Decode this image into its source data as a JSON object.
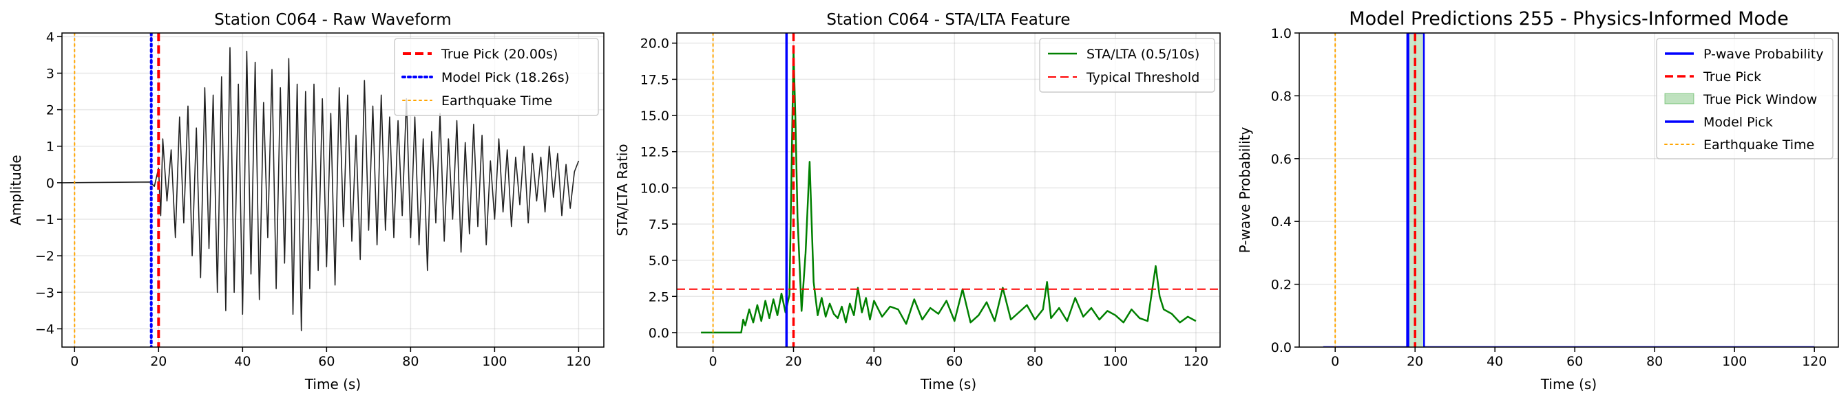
{
  "chart_data": [
    {
      "type": "line",
      "title": "Station C064 - Raw Waveform",
      "xlabel": "Time (s)",
      "ylabel": "Amplitude",
      "xlim": [
        -3,
        126
      ],
      "ylim": [
        -4.5,
        4.1
      ],
      "xticks": [
        0,
        20,
        40,
        60,
        80,
        100,
        120
      ],
      "xtick_labels": [
        "0",
        "20",
        "40",
        "60",
        "80",
        "100",
        "120"
      ],
      "yticks": [
        -4,
        -3,
        -2,
        -1,
        0,
        1,
        2,
        3,
        4
      ],
      "ytick_labels": [
        "−4",
        "−3",
        "−2",
        "−1",
        "0",
        "1",
        "2",
        "3",
        "4"
      ],
      "grid": true,
      "legend_position": "top-right",
      "series": [
        {
          "name": "",
          "color": "#222222",
          "x": [
            -3,
            18,
            19,
            20,
            20.5,
            21,
            22,
            23,
            24,
            25,
            26,
            27,
            28,
            29,
            30,
            31,
            32,
            33,
            34,
            35,
            36,
            37,
            38,
            39,
            40,
            41,
            42,
            43,
            44,
            45,
            46,
            47,
            48,
            49,
            50,
            51,
            52,
            53,
            54,
            55,
            56,
            57,
            58,
            59,
            60,
            61,
            62,
            63,
            64,
            65,
            66,
            67,
            68,
            69,
            70,
            71,
            72,
            73,
            74,
            75,
            76,
            77,
            78,
            79,
            80,
            81,
            82,
            83,
            84,
            85,
            86,
            87,
            88,
            89,
            90,
            91,
            92,
            93,
            94,
            95,
            96,
            97,
            98,
            99,
            100,
            101,
            102,
            103,
            104,
            105,
            106,
            107,
            108,
            109,
            110,
            111,
            112,
            113,
            114,
            115,
            116,
            117,
            118,
            119,
            120
          ],
          "y": [
            0.0,
            0.02,
            -0.1,
            0.4,
            -0.9,
            1.2,
            -0.5,
            0.9,
            -1.5,
            1.8,
            -1.1,
            2.1,
            -2.0,
            1.5,
            -2.6,
            2.6,
            -1.8,
            2.4,
            -3.0,
            2.9,
            -3.5,
            3.7,
            -3.0,
            2.7,
            -3.6,
            3.6,
            -2.5,
            3.3,
            -3.2,
            2.2,
            -1.5,
            3.1,
            -2.9,
            2.6,
            -2.2,
            3.4,
            -3.6,
            2.7,
            -4.05,
            2.5,
            -2.9,
            2.7,
            -2.4,
            2.3,
            -2.3,
            1.9,
            -2.8,
            2.6,
            -1.2,
            2.4,
            -1.6,
            1.3,
            -2.1,
            2.8,
            -1.3,
            2.1,
            -1.7,
            2.4,
            -1.3,
            1.8,
            -1.5,
            1.7,
            -0.9,
            2.3,
            -1.5,
            1.8,
            -1.7,
            1.2,
            -2.4,
            1.4,
            -1.1,
            1.9,
            -1.6,
            1.2,
            -1.0,
            1.7,
            -1.9,
            1.1,
            -1.4,
            1.6,
            -1.2,
            1.3,
            -1.7,
            0.6,
            -1.0,
            1.2,
            -0.8,
            0.9,
            -1.2,
            0.7,
            -0.6,
            1.0,
            -1.1,
            0.8,
            -0.5,
            0.7,
            -0.8,
            1.0,
            -0.4,
            0.8,
            -0.9,
            0.5,
            -0.7,
            0.3,
            0.6
          ]
        }
      ],
      "vlines": [
        {
          "name": "True Pick (20.00s)",
          "x": 20.0,
          "color": "#ff0000",
          "style": "dashed",
          "width": 4
        },
        {
          "name": "Model Pick (18.26s)",
          "x": 18.26,
          "color": "#0000ff",
          "style": "dotted",
          "width": 4
        },
        {
          "name": "Earthquake Time",
          "x": 0,
          "color": "#ffa500",
          "style": "dotted",
          "width": 2
        }
      ]
    },
    {
      "type": "line",
      "title": "Station C064 - STA/LTA Feature",
      "xlabel": "Time (s)",
      "ylabel": "STA/LTA Ratio",
      "xlim": [
        -9,
        126
      ],
      "ylim": [
        -1.0,
        20.7
      ],
      "xticks": [
        0,
        20,
        40,
        60,
        80,
        100,
        120
      ],
      "xtick_labels": [
        "0",
        "20",
        "40",
        "60",
        "80",
        "100",
        "120"
      ],
      "yticks": [
        0,
        2.5,
        5,
        7.5,
        10,
        12.5,
        15,
        17.5,
        20
      ],
      "ytick_labels": [
        "0.0",
        "2.5",
        "5.0",
        "7.5",
        "10.0",
        "12.5",
        "15.0",
        "17.5",
        "20.0"
      ],
      "grid": true,
      "legend_position": "top-right",
      "series": [
        {
          "name": "STA/LTA (0.5/10s)",
          "color": "#008000",
          "x": [
            -3,
            7,
            7.5,
            8,
            9,
            10,
            11,
            12,
            13,
            14,
            15,
            16,
            17,
            18,
            19,
            20,
            20.5,
            21,
            22,
            23,
            24,
            25,
            26,
            27,
            28,
            29,
            30,
            31,
            32,
            33,
            34,
            35,
            36,
            37,
            38,
            39,
            40,
            42,
            44,
            46,
            48,
            50,
            52,
            54,
            56,
            58,
            60,
            62,
            64,
            66,
            68,
            70,
            72,
            74,
            76,
            78,
            80,
            82,
            83,
            84,
            86,
            88,
            90,
            92,
            94,
            96,
            98,
            100,
            102,
            104,
            106,
            108,
            110,
            111,
            112,
            114,
            116,
            118,
            120
          ],
          "y": [
            0.0,
            0.0,
            0.9,
            0.5,
            1.6,
            0.7,
            1.9,
            0.8,
            2.2,
            1.0,
            2.3,
            1.2,
            2.7,
            1.4,
            2.6,
            19.5,
            14.5,
            8.0,
            1.5,
            5.5,
            11.8,
            3.5,
            1.2,
            2.4,
            1.1,
            2.0,
            1.3,
            1.0,
            1.8,
            0.7,
            2.0,
            1.2,
            3.1,
            1.4,
            2.4,
            0.9,
            2.2,
            1.1,
            1.8,
            1.6,
            0.6,
            2.3,
            0.9,
            1.7,
            1.3,
            2.2,
            0.8,
            3.0,
            0.7,
            1.2,
            2.1,
            0.8,
            3.1,
            0.9,
            1.4,
            1.9,
            0.9,
            1.6,
            3.5,
            1.0,
            1.7,
            0.8,
            2.4,
            1.1,
            1.7,
            0.9,
            1.5,
            1.2,
            0.7,
            1.6,
            1.0,
            0.8,
            4.6,
            2.5,
            1.6,
            1.3,
            0.7,
            1.1,
            0.8
          ]
        }
      ],
      "hlines": [
        {
          "name": "Typical Threshold",
          "y": 3.0,
          "color": "#ff0000",
          "style": "dashed",
          "width": 2
        }
      ],
      "vlines": [
        {
          "name": "",
          "x": 18.26,
          "color": "#0000ff",
          "style": "solid",
          "width": 3.5
        },
        {
          "name": "",
          "x": 20.0,
          "color": "#ff0000",
          "style": "dashed",
          "width": 3.5
        },
        {
          "name": "",
          "x": 0,
          "color": "#ffa500",
          "style": "dotted",
          "width": 2
        }
      ]
    },
    {
      "type": "line",
      "title": "Model Predictions 255 - Physics-Informed Mode",
      "xlabel": "Time (s)",
      "ylabel": "P-wave Probability",
      "xlim": [
        -9,
        126
      ],
      "ylim": [
        0,
        1.0
      ],
      "xticks": [
        0,
        20,
        40,
        60,
        80,
        100,
        120
      ],
      "xtick_labels": [
        "0",
        "20",
        "40",
        "60",
        "80",
        "100",
        "120"
      ],
      "yticks": [
        0,
        0.2,
        0.4,
        0.6,
        0.8,
        1.0
      ],
      "ytick_labels": [
        "0.0",
        "0.2",
        "0.4",
        "0.6",
        "0.8",
        "1.0"
      ],
      "grid": true,
      "legend_position": "top-right",
      "series": [
        {
          "name": "P-wave Probability",
          "color": "#0000ff",
          "x": [
            -3,
            18,
            18.05,
            22.2,
            22.25,
            120
          ],
          "y": [
            0.0,
            0.0,
            1.0,
            1.0,
            0.0,
            0.0
          ]
        }
      ],
      "spans": [
        {
          "name": "True Pick Window",
          "x0": 18.0,
          "x1": 22.0,
          "color": "#2ca02c",
          "opacity": 0.25
        }
      ],
      "vlines": [
        {
          "name": "True Pick",
          "x": 20.0,
          "color": "#ff0000",
          "style": "dashed",
          "width": 3.5
        },
        {
          "name": "Model Pick",
          "x": 18.26,
          "color": "#0000ff",
          "style": "solid",
          "width": 3.5
        },
        {
          "name": "Earthquake Time",
          "x": 0,
          "color": "#ffa500",
          "style": "dotted",
          "width": 2
        }
      ]
    }
  ]
}
